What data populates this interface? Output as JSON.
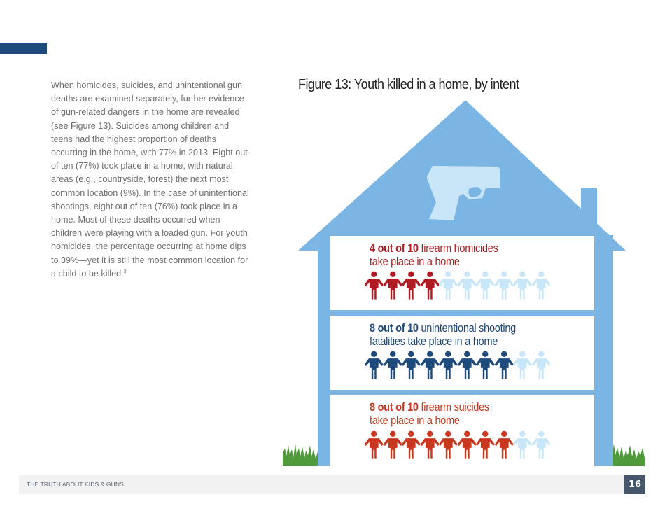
{
  "page": {
    "accent_color": "#1f4a7c",
    "body_paragraph": "When homicides, suicides, and unintentional gun deaths are examined separately, further evidence of gun-related dangers in the home are revealed (see Figure 13). Suicides among children and teens had the highest proportion of deaths occurring in the home, with 77% in 2013. Eight out of ten (77%) took place in a home, with natural areas (e.g., countryside, forest) the next most common location (9%). In the case of unintentional shootings, eight out of ten (76%) took place in a home. Most of these deaths occurred when children were playing with a loaded gun. For youth homicides, the percentage occurring at home dips to 39%—yet it is still the most common location for a child to be killed.",
    "footnote_marker": "3"
  },
  "figure": {
    "title": "Figure 13: Youth killed in a home, by intent",
    "house_color": "#7ab5e3",
    "gun_icon": "handgun-icon",
    "gun_color": "#c8e6f7",
    "inactive_person_color": "#c8e6f7",
    "panels": [
      {
        "id": "homicides",
        "bold": "4 out of 10",
        "line1_rest": " firearm homicides",
        "line2": "take place in a home",
        "count": 4,
        "total": 10,
        "color": "#b01c24"
      },
      {
        "id": "unintentional",
        "bold": "8 out of 10",
        "line1_rest": " unintentional shooting",
        "line2": "fatalities take place in a home",
        "count": 8,
        "total": 10,
        "color": "#1f4a7c"
      },
      {
        "id": "suicides",
        "bold": "8 out of 10",
        "line1_rest": " firearm suicides",
        "line2": "take place in a home",
        "count": 8,
        "total": 10,
        "color": "#c8381e"
      }
    ]
  },
  "chart_data": {
    "type": "pictograph",
    "title": "Figure 13: Youth killed in a home, by intent",
    "categories": [
      "Firearm homicides",
      "Unintentional shooting fatalities",
      "Firearm suicides"
    ],
    "values": [
      4,
      8,
      8
    ],
    "denominator": 10,
    "unit": "out of 10 take place in a home",
    "colors": [
      "#b01c24",
      "#1f4a7c",
      "#c8381e"
    ]
  },
  "footer": {
    "publication": "THE TRUTH ABOUT KIDS & GUNS",
    "page_number": "16"
  }
}
